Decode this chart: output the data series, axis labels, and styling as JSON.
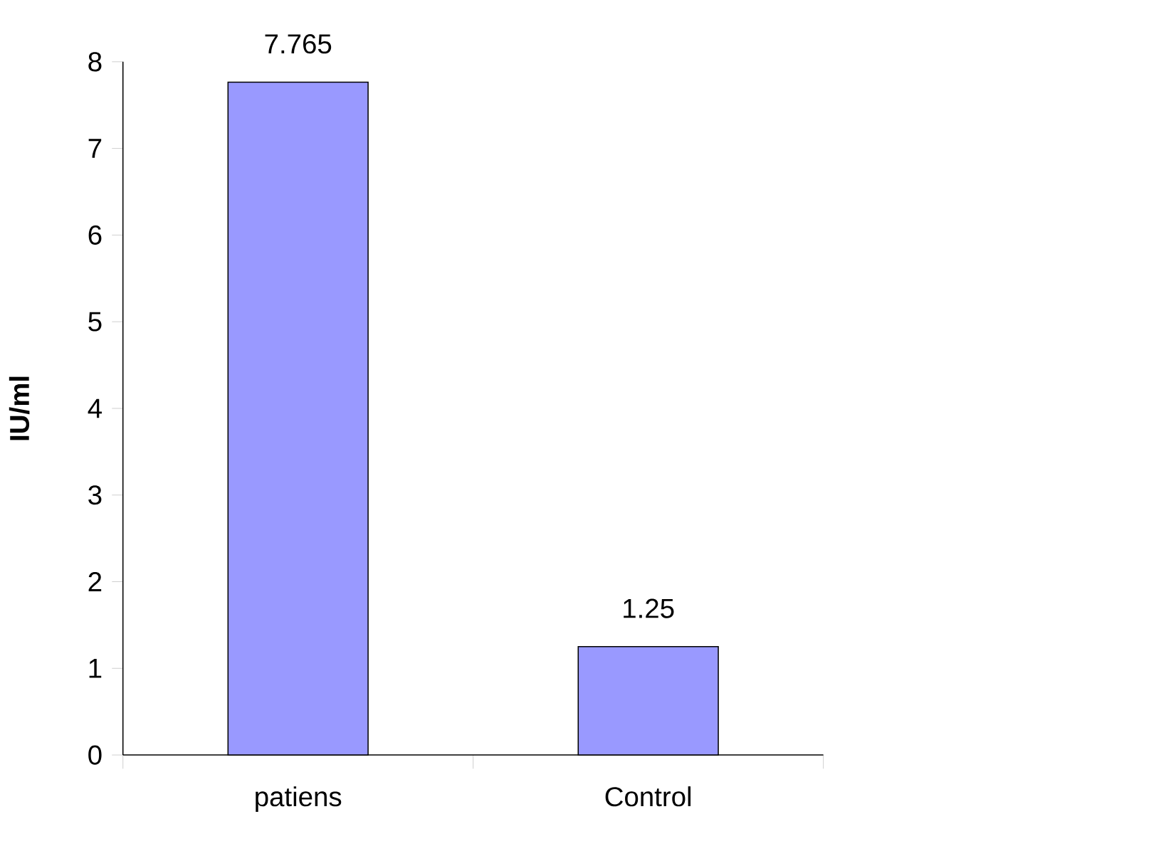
{
  "chart_data": {
    "type": "bar",
    "ylabel": "IU/ml",
    "categories": [
      "patiens",
      "Control"
    ],
    "values": [
      7.765,
      1.25
    ],
    "color": "#9999ff",
    "ylim": [
      0,
      8
    ],
    "yticks": [
      0,
      1,
      2,
      3,
      4,
      5,
      6,
      7,
      8
    ],
    "data_labels": true
  }
}
